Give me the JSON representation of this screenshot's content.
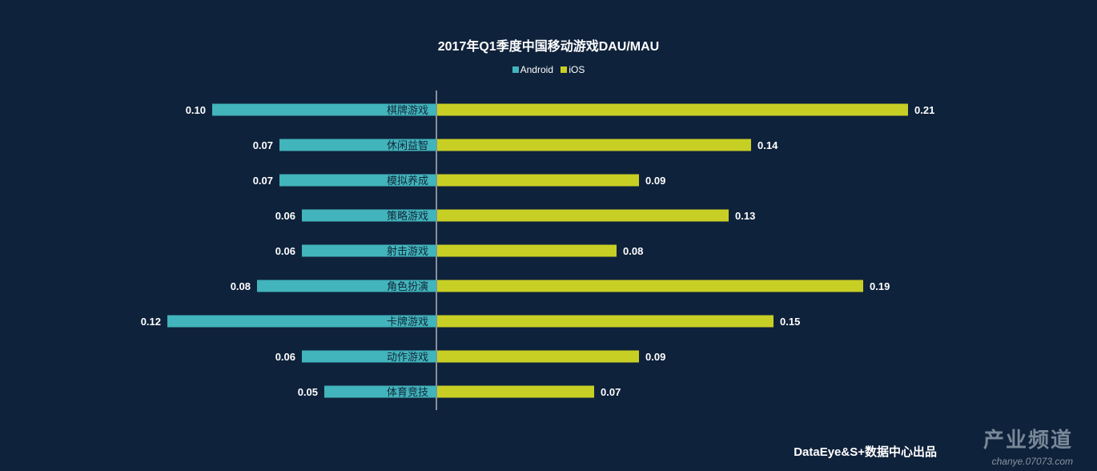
{
  "chart_data": {
    "type": "bar",
    "orientation": "horizontal-butterfly",
    "title": "2017年Q1季度中国移动游戏DAU/MAU",
    "categories": [
      "棋牌游戏",
      "休闲益智",
      "模拟养成",
      "策略游戏",
      "射击游戏",
      "角色扮演",
      "卡牌游戏",
      "动作游戏",
      "体育竞技"
    ],
    "series": [
      {
        "name": "Android",
        "color": "#42b4bb",
        "values": [
          0.1,
          0.07,
          0.07,
          0.06,
          0.06,
          0.08,
          0.12,
          0.06,
          0.05
        ]
      },
      {
        "name": "iOS",
        "color": "#c8cf24",
        "values": [
          0.21,
          0.14,
          0.09,
          0.13,
          0.08,
          0.19,
          0.15,
          0.09,
          0.07
        ]
      }
    ],
    "legend_position": "top-center",
    "grid": false
  },
  "footer": "DataEye&S+数据中心出品",
  "watermark": {
    "title": "产业频道",
    "url": "chanye.07073.com"
  }
}
